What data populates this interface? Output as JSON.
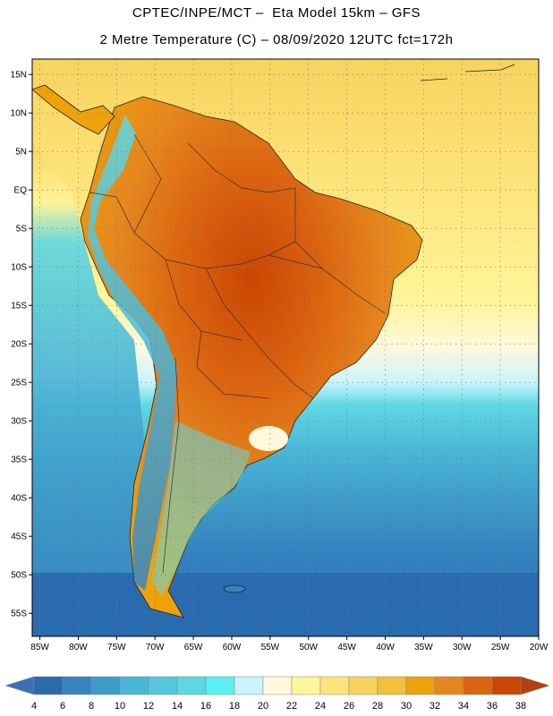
{
  "title": {
    "line1": "CPTEC/INPE/MCT –  Eta Model 15km – GFS",
    "line2": "2 Metre Temperature (C) – 08/09/2020 12UTC fct=172h"
  },
  "map": {
    "lon_range": [
      -86,
      -20
    ],
    "lat_range": [
      -58,
      17
    ],
    "lat_ticks": [
      {
        "value": 15,
        "label": "15N"
      },
      {
        "value": 10,
        "label": "10N"
      },
      {
        "value": 5,
        "label": "5N"
      },
      {
        "value": 0,
        "label": "EQ"
      },
      {
        "value": -5,
        "label": "5S"
      },
      {
        "value": -10,
        "label": "10S"
      },
      {
        "value": -15,
        "label": "15S"
      },
      {
        "value": -20,
        "label": "20S"
      },
      {
        "value": -25,
        "label": "25S"
      },
      {
        "value": -30,
        "label": "30S"
      },
      {
        "value": -35,
        "label": "35S"
      },
      {
        "value": -40,
        "label": "40S"
      },
      {
        "value": -45,
        "label": "45S"
      },
      {
        "value": -50,
        "label": "50S"
      },
      {
        "value": -55,
        "label": "55S"
      }
    ],
    "lon_ticks": [
      {
        "value": -85,
        "label": "85W"
      },
      {
        "value": -80,
        "label": "80W"
      },
      {
        "value": -75,
        "label": "75W"
      },
      {
        "value": -70,
        "label": "70W"
      },
      {
        "value": -65,
        "label": "65W"
      },
      {
        "value": -60,
        "label": "60W"
      },
      {
        "value": -55,
        "label": "55W"
      },
      {
        "value": -50,
        "label": "50W"
      },
      {
        "value": -45,
        "label": "45W"
      },
      {
        "value": -40,
        "label": "40W"
      },
      {
        "value": -35,
        "label": "35W"
      },
      {
        "value": -30,
        "label": "30W"
      },
      {
        "value": -25,
        "label": "25W"
      },
      {
        "value": -20,
        "label": "20W"
      }
    ]
  },
  "colorbar": {
    "labels": [
      "4",
      "6",
      "8",
      "10",
      "12",
      "14",
      "16",
      "18",
      "20",
      "22",
      "24",
      "26",
      "28",
      "30",
      "32",
      "34",
      "36",
      "38"
    ],
    "colors": [
      "#2a6bb0",
      "#3584c0",
      "#3f9cc9",
      "#4ab6d6",
      "#54c8dc",
      "#5ed8e2",
      "#5cf0f2",
      "#c9f4fb",
      "#fff8dc",
      "#fff59a",
      "#fde47a",
      "#f7d35d",
      "#f2c03c",
      "#eda20c",
      "#e5861e",
      "#db6410",
      "#c94604"
    ],
    "low_color": "#3a70b8",
    "high_color": "#b5400e"
  },
  "colors": {
    "ocean_tropical": "#fde47a",
    "ocean_north": "#f7d35d",
    "ocean_mid": "#54c8dc",
    "ocean_south": "#3584c0",
    "ocean_far_south": "#2a6bb0",
    "land_warm": "#eda20c",
    "land_hot": "#db6410",
    "land_hottest": "#c94604"
  }
}
